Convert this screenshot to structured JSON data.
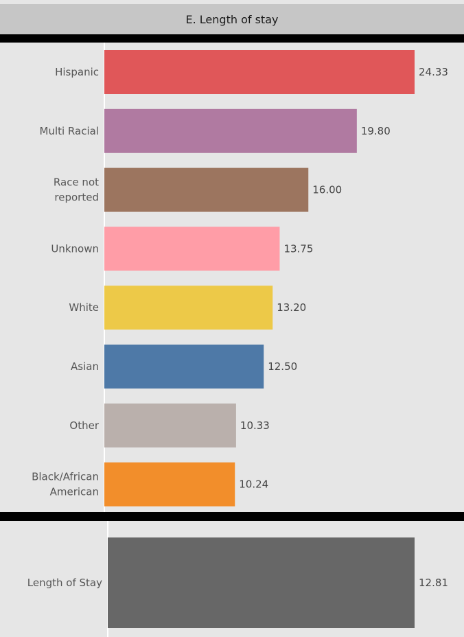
{
  "chart_data": [
    {
      "type": "bar",
      "orientation": "horizontal",
      "title": "E. Length of stay",
      "categories": [
        "Hispanic",
        "Multi Racial",
        "Race not reported",
        "Unknown",
        "White",
        "Asian",
        "Other",
        "Black/African American"
      ],
      "values": [
        24.33,
        19.8,
        16.0,
        13.75,
        13.2,
        12.5,
        10.33,
        10.24
      ],
      "value_labels": [
        "24.33",
        "19.80",
        "16.00",
        "13.75",
        "13.20",
        "12.50",
        "10.33",
        "10.24"
      ],
      "colors": [
        "#e05759",
        "#b07aa1",
        "#9c755f",
        "#ff9da7",
        "#edc948",
        "#4e79a7",
        "#bab0ac",
        "#f28e2b"
      ],
      "xlim": [
        0,
        24.33
      ],
      "grid": false,
      "legend": "none"
    },
    {
      "type": "bar",
      "orientation": "horizontal",
      "categories": [
        "Length of Stay"
      ],
      "values": [
        12.81
      ],
      "value_labels": [
        "12.81"
      ],
      "colors": [
        "#676767"
      ],
      "xlim": [
        0,
        12.81
      ],
      "grid": false,
      "legend": "none"
    }
  ]
}
